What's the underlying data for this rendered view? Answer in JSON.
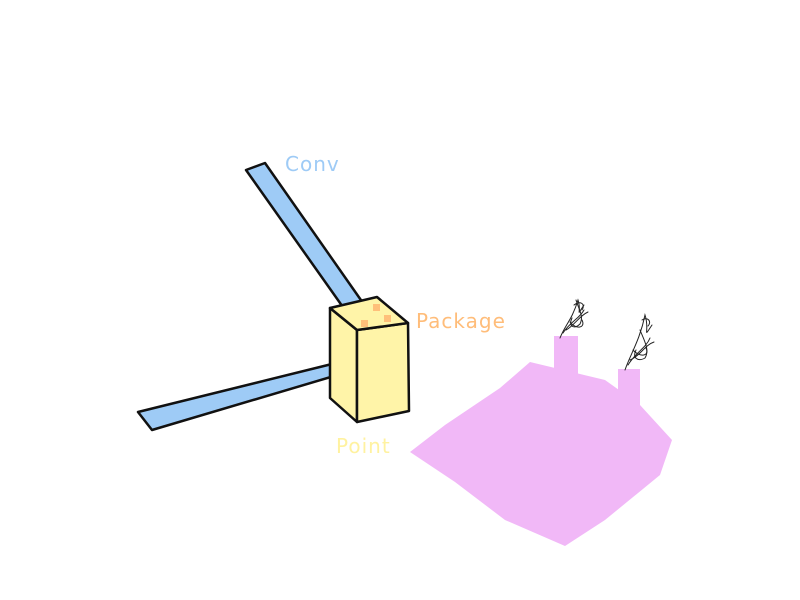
{
  "labels": {
    "conv": "Conv",
    "package": "Package",
    "point": "Point"
  },
  "colors": {
    "conveyor": "#9ecbf6",
    "box": "#fff4a8",
    "box_dots": "#ffc07a",
    "factory": "#f1b8f7",
    "smoke": "#222222",
    "outline": "#111111",
    "label_conv": "#9ecbf6",
    "label_package": "#ffbd7a",
    "label_point": "#fff2a0"
  },
  "icons": {
    "conveyor": "conveyor-belt",
    "package": "box",
    "factory": "factory",
    "smoke": "smoke"
  }
}
